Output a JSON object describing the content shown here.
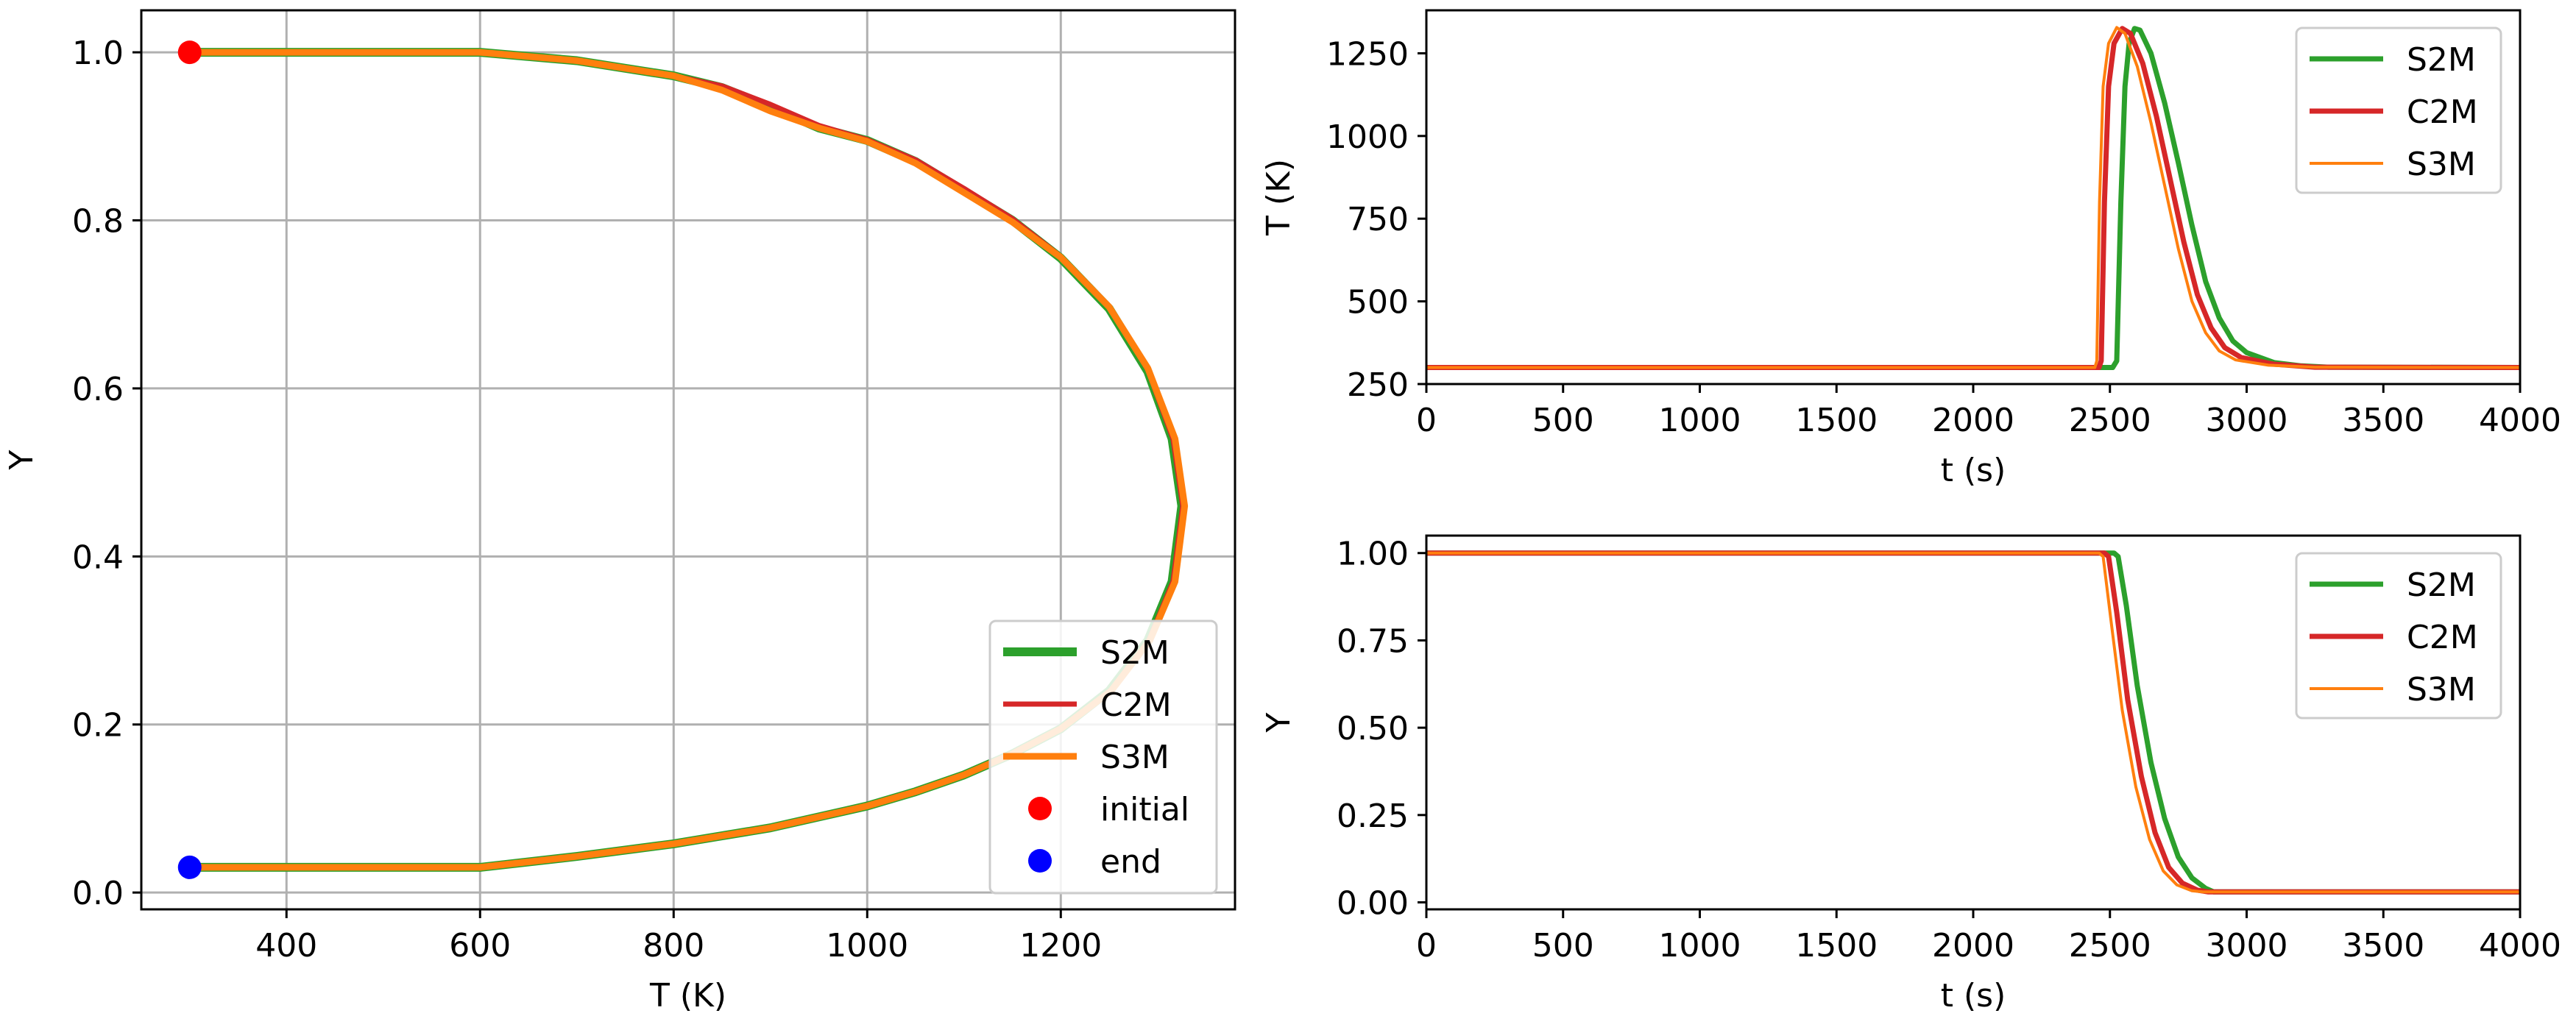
{
  "chart_data": [
    {
      "type": "line",
      "xlabel": "T (K)",
      "ylabel": "Y",
      "xlim": [
        250,
        1380
      ],
      "ylim": [
        -0.02,
        1.05
      ],
      "xticks": [
        400,
        600,
        800,
        1000,
        1200
      ],
      "yticks": [
        0.0,
        0.2,
        0.4,
        0.6,
        0.8,
        1.0
      ],
      "xtick_labels": [
        "400",
        "600",
        "800",
        "1000",
        "1200"
      ],
      "ytick_labels": [
        "0.0",
        "0.2",
        "0.4",
        "0.6",
        "0.8",
        "1.0"
      ],
      "grid": true,
      "legend_position": "lower-right",
      "series": [
        {
          "name": "S2M",
          "color": "#2ca02c",
          "points": [
            [
              300,
              1.0
            ],
            [
              600,
              1.0
            ],
            [
              700,
              0.99
            ],
            [
              800,
              0.972
            ],
            [
              850,
              0.958
            ],
            [
              900,
              0.935
            ],
            [
              950,
              0.91
            ],
            [
              1000,
              0.895
            ],
            [
              1050,
              0.87
            ],
            [
              1100,
              0.835
            ],
            [
              1150,
              0.8
            ],
            [
              1200,
              0.755
            ],
            [
              1250,
              0.695
            ],
            [
              1290,
              0.62
            ],
            [
              1315,
              0.54
            ],
            [
              1325,
              0.46
            ],
            [
              1315,
              0.37
            ],
            [
              1290,
              0.3
            ],
            [
              1250,
              0.24
            ],
            [
              1200,
              0.195
            ],
            [
              1150,
              0.165
            ],
            [
              1100,
              0.14
            ],
            [
              1050,
              0.12
            ],
            [
              1000,
              0.103
            ],
            [
              900,
              0.077
            ],
            [
              800,
              0.058
            ],
            [
              700,
              0.043
            ],
            [
              600,
              0.03
            ],
            [
              300,
              0.03
            ]
          ]
        },
        {
          "name": "C2M",
          "color": "#d62728",
          "points": [
            [
              300,
              1.0
            ],
            [
              600,
              1.0
            ],
            [
              700,
              0.99
            ],
            [
              800,
              0.972
            ],
            [
              850,
              0.96
            ],
            [
              900,
              0.938
            ],
            [
              950,
              0.913
            ],
            [
              1000,
              0.896
            ],
            [
              1050,
              0.872
            ],
            [
              1100,
              0.838
            ],
            [
              1150,
              0.802
            ],
            [
              1200,
              0.757
            ],
            [
              1250,
              0.698
            ],
            [
              1290,
              0.622
            ],
            [
              1316,
              0.54
            ],
            [
              1326,
              0.46
            ],
            [
              1316,
              0.37
            ],
            [
              1291,
              0.3
            ],
            [
              1251,
              0.24
            ],
            [
              1200,
              0.195
            ],
            [
              1150,
              0.165
            ],
            [
              1100,
              0.14
            ],
            [
              1050,
              0.12
            ],
            [
              1000,
              0.103
            ],
            [
              900,
              0.077
            ],
            [
              800,
              0.058
            ],
            [
              700,
              0.043
            ],
            [
              600,
              0.03
            ],
            [
              300,
              0.03
            ]
          ]
        },
        {
          "name": "S3M",
          "color": "#ff7f0e",
          "points": [
            [
              300,
              1.0
            ],
            [
              600,
              1.0
            ],
            [
              700,
              0.99
            ],
            [
              800,
              0.972
            ],
            [
              850,
              0.955
            ],
            [
              900,
              0.93
            ],
            [
              950,
              0.91
            ],
            [
              1000,
              0.894
            ],
            [
              1050,
              0.868
            ],
            [
              1100,
              0.833
            ],
            [
              1150,
              0.798
            ],
            [
              1200,
              0.756
            ],
            [
              1250,
              0.697
            ],
            [
              1290,
              0.624
            ],
            [
              1318,
              0.54
            ],
            [
              1328,
              0.46
            ],
            [
              1318,
              0.37
            ],
            [
              1292,
              0.3
            ],
            [
              1252,
              0.24
            ],
            [
              1200,
              0.195
            ],
            [
              1150,
              0.165
            ],
            [
              1100,
              0.14
            ],
            [
              1050,
              0.12
            ],
            [
              1000,
              0.103
            ],
            [
              900,
              0.077
            ],
            [
              800,
              0.058
            ],
            [
              700,
              0.043
            ],
            [
              600,
              0.03
            ],
            [
              300,
              0.03
            ]
          ]
        }
      ],
      "markers": [
        {
          "name": "initial",
          "color": "#ff0000",
          "x": 300,
          "y": 1.0
        },
        {
          "name": "end",
          "color": "#0000ff",
          "x": 300,
          "y": 0.03
        }
      ]
    },
    {
      "type": "line",
      "xlabel": "t (s)",
      "ylabel": "T (K)",
      "xlim": [
        0,
        4000
      ],
      "ylim": [
        250,
        1380
      ],
      "xticks": [
        0,
        500,
        1000,
        1500,
        2000,
        2500,
        3000,
        3500,
        4000
      ],
      "yticks": [
        250,
        500,
        750,
        1000,
        1250
      ],
      "xtick_labels": [
        "0",
        "500",
        "1000",
        "1500",
        "2000",
        "2500",
        "3000",
        "3500",
        "4000"
      ],
      "ytick_labels": [
        "250",
        "500",
        "750",
        "1000",
        "1250"
      ],
      "grid": false,
      "legend_position": "upper-right",
      "series": [
        {
          "name": "S2M",
          "color": "#2ca02c",
          "points": [
            [
              0,
              300
            ],
            [
              2500,
              300
            ],
            [
              2510,
              300
            ],
            [
              2525,
              320
            ],
            [
              2540,
              800
            ],
            [
              2555,
              1150
            ],
            [
              2570,
              1280
            ],
            [
              2590,
              1325
            ],
            [
              2610,
              1320
            ],
            [
              2650,
              1250
            ],
            [
              2700,
              1100
            ],
            [
              2750,
              920
            ],
            [
              2800,
              730
            ],
            [
              2850,
              560
            ],
            [
              2900,
              450
            ],
            [
              2950,
              380
            ],
            [
              3000,
              345
            ],
            [
              3100,
              315
            ],
            [
              3200,
              305
            ],
            [
              3300,
              301
            ],
            [
              4000,
              300
            ]
          ]
        },
        {
          "name": "C2M",
          "color": "#d62728",
          "points": [
            [
              0,
              300
            ],
            [
              2460,
              300
            ],
            [
              2468,
              320
            ],
            [
              2480,
              800
            ],
            [
              2495,
              1150
            ],
            [
              2515,
              1280
            ],
            [
              2545,
              1325
            ],
            [
              2575,
              1310
            ],
            [
              2620,
              1220
            ],
            [
              2670,
              1060
            ],
            [
              2720,
              870
            ],
            [
              2770,
              680
            ],
            [
              2820,
              520
            ],
            [
              2870,
              420
            ],
            [
              2920,
              360
            ],
            [
              2980,
              330
            ],
            [
              3100,
              310
            ],
            [
              3250,
              301
            ],
            [
              4000,
              300
            ]
          ]
        },
        {
          "name": "S3M",
          "color": "#ff7f0e",
          "points": [
            [
              0,
              300
            ],
            [
              2445,
              300
            ],
            [
              2452,
              320
            ],
            [
              2462,
              800
            ],
            [
              2475,
              1150
            ],
            [
              2495,
              1280
            ],
            [
              2525,
              1328
            ],
            [
              2555,
              1310
            ],
            [
              2600,
              1210
            ],
            [
              2650,
              1040
            ],
            [
              2700,
              850
            ],
            [
              2750,
              660
            ],
            [
              2800,
              500
            ],
            [
              2850,
              405
            ],
            [
              2900,
              350
            ],
            [
              2960,
              323
            ],
            [
              3080,
              307
            ],
            [
              3250,
              301
            ],
            [
              4000,
              300
            ]
          ]
        }
      ]
    },
    {
      "type": "line",
      "xlabel": "t (s)",
      "ylabel": "Y",
      "xlim": [
        0,
        4000
      ],
      "ylim": [
        -0.02,
        1.05
      ],
      "xticks": [
        0,
        500,
        1000,
        1500,
        2000,
        2500,
        3000,
        3500,
        4000
      ],
      "yticks": [
        0.0,
        0.25,
        0.5,
        0.75,
        1.0
      ],
      "xtick_labels": [
        "0",
        "500",
        "1000",
        "1500",
        "2000",
        "2500",
        "3000",
        "3500",
        "4000"
      ],
      "ytick_labels": [
        "0.00",
        "0.25",
        "0.50",
        "0.75",
        "1.00"
      ],
      "grid": false,
      "legend_position": "upper-right",
      "series": [
        {
          "name": "S2M",
          "color": "#2ca02c",
          "points": [
            [
              0,
              1.0
            ],
            [
              2515,
              1.0
            ],
            [
              2530,
              0.99
            ],
            [
              2560,
              0.85
            ],
            [
              2600,
              0.62
            ],
            [
              2650,
              0.4
            ],
            [
              2700,
              0.24
            ],
            [
              2750,
              0.13
            ],
            [
              2800,
              0.07
            ],
            [
              2850,
              0.04
            ],
            [
              2880,
              0.03
            ],
            [
              4000,
              0.03
            ]
          ]
        },
        {
          "name": "C2M",
          "color": "#d62728",
          "points": [
            [
              0,
              1.0
            ],
            [
              2480,
              1.0
            ],
            [
              2495,
              0.99
            ],
            [
              2525,
              0.83
            ],
            [
              2565,
              0.58
            ],
            [
              2615,
              0.36
            ],
            [
              2665,
              0.2
            ],
            [
              2715,
              0.1
            ],
            [
              2765,
              0.055
            ],
            [
              2820,
              0.035
            ],
            [
              2860,
              0.03
            ],
            [
              4000,
              0.03
            ]
          ]
        },
        {
          "name": "S3M",
          "color": "#ff7f0e",
          "points": [
            [
              0,
              1.0
            ],
            [
              2460,
              1.0
            ],
            [
              2475,
              0.99
            ],
            [
              2505,
              0.8
            ],
            [
              2545,
              0.55
            ],
            [
              2595,
              0.33
            ],
            [
              2645,
              0.18
            ],
            [
              2695,
              0.09
            ],
            [
              2745,
              0.05
            ],
            [
              2800,
              0.033
            ],
            [
              2840,
              0.03
            ],
            [
              4000,
              0.03
            ]
          ]
        }
      ]
    }
  ]
}
